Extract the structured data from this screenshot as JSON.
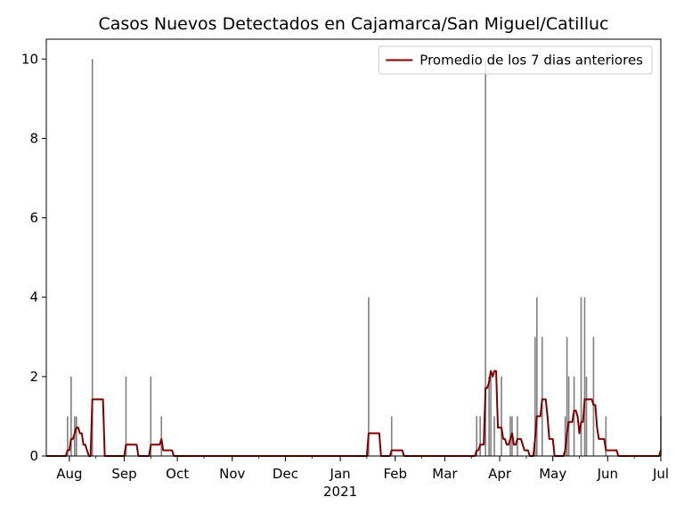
{
  "chart_data": {
    "type": "bar+line",
    "title": "Casos Nuevos Detectados en Cajamarca/San Miguel/Catilluc",
    "xlabel": "",
    "ylabel": "",
    "x_range": [
      "2020-07-19",
      "2021-07-01"
    ],
    "ylim": [
      0,
      10.5
    ],
    "y_ticks": [
      0,
      2,
      4,
      6,
      8,
      10
    ],
    "x_ticks": [
      {
        "date": "2020-08-01",
        "label": "Aug",
        "sublabel": ""
      },
      {
        "date": "2020-09-01",
        "label": "Sep",
        "sublabel": ""
      },
      {
        "date": "2020-10-01",
        "label": "Oct",
        "sublabel": ""
      },
      {
        "date": "2020-11-01",
        "label": "Nov",
        "sublabel": ""
      },
      {
        "date": "2020-12-01",
        "label": "Dec",
        "sublabel": ""
      },
      {
        "date": "2021-01-01",
        "label": "Jan",
        "sublabel": "2021"
      },
      {
        "date": "2021-02-01",
        "label": "Feb",
        "sublabel": ""
      },
      {
        "date": "2021-03-01",
        "label": "Mar",
        "sublabel": ""
      },
      {
        "date": "2021-04-01",
        "label": "Apr",
        "sublabel": ""
      },
      {
        "date": "2021-05-01",
        "label": "May",
        "sublabel": ""
      },
      {
        "date": "2021-06-01",
        "label": "Jun",
        "sublabel": ""
      },
      {
        "date": "2021-07-01",
        "label": "Jul",
        "sublabel": ""
      }
    ],
    "daily_cases": [
      {
        "date": "2020-07-31",
        "value": 1
      },
      {
        "date": "2020-08-02",
        "value": 2
      },
      {
        "date": "2020-08-04",
        "value": 1
      },
      {
        "date": "2020-08-05",
        "value": 1
      },
      {
        "date": "2020-08-14",
        "value": 10
      },
      {
        "date": "2020-09-02",
        "value": 2
      },
      {
        "date": "2020-09-16",
        "value": 2
      },
      {
        "date": "2020-09-22",
        "value": 1
      },
      {
        "date": "2021-01-17",
        "value": 4
      },
      {
        "date": "2021-01-30",
        "value": 1
      },
      {
        "date": "2021-03-19",
        "value": 1
      },
      {
        "date": "2021-03-21",
        "value": 1
      },
      {
        "date": "2021-03-24",
        "value": 10
      },
      {
        "date": "2021-03-26",
        "value": 2
      },
      {
        "date": "2021-03-27",
        "value": 2
      },
      {
        "date": "2021-03-29",
        "value": 1
      },
      {
        "date": "2021-04-02",
        "value": 2
      },
      {
        "date": "2021-04-07",
        "value": 1
      },
      {
        "date": "2021-04-08",
        "value": 1
      },
      {
        "date": "2021-04-11",
        "value": 1
      },
      {
        "date": "2021-04-21",
        "value": 3
      },
      {
        "date": "2021-04-22",
        "value": 4
      },
      {
        "date": "2021-04-25",
        "value": 3
      },
      {
        "date": "2021-05-08",
        "value": 1
      },
      {
        "date": "2021-05-09",
        "value": 3
      },
      {
        "date": "2021-05-10",
        "value": 2
      },
      {
        "date": "2021-05-13",
        "value": 2
      },
      {
        "date": "2021-05-17",
        "value": 4
      },
      {
        "date": "2021-05-19",
        "value": 4
      },
      {
        "date": "2021-05-20",
        "value": 2
      },
      {
        "date": "2021-05-24",
        "value": 3
      },
      {
        "date": "2021-05-31",
        "value": 1
      },
      {
        "date": "2021-07-01",
        "value": 1
      }
    ],
    "series": [
      {
        "name": "Promedio de los 7 dias anteriores",
        "type": "line",
        "color": "#800000",
        "window_days": 7
      }
    ],
    "bar_color": "#808080",
    "legend_position": "top-right"
  }
}
